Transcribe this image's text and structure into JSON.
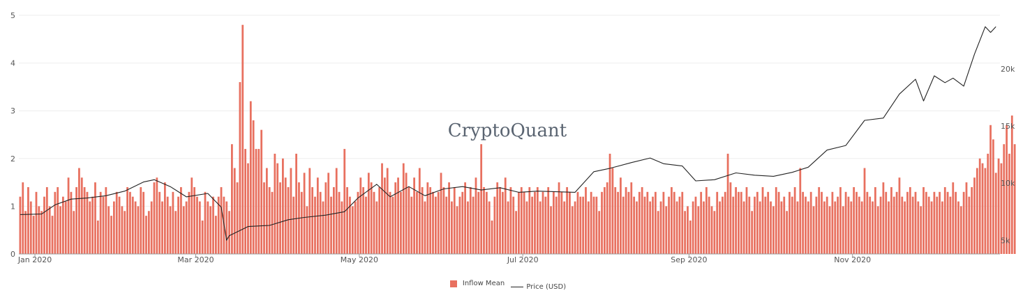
{
  "watermark": "CryptoQuant",
  "colors": {
    "bar": "#e8705f",
    "bar_edge": "#d9534f",
    "line": "#222222",
    "grid": "#eeeeee",
    "axis": "#555555"
  },
  "legend": {
    "bar_label": "Inflow Mean",
    "line_label": "Price (USD)"
  },
  "chart_data": {
    "type": "bar",
    "x_range": [
      "2019-12-26",
      "2020-12-25"
    ],
    "y_left": {
      "ticks": [
        0,
        1,
        2,
        3,
        4,
        5
      ],
      "range": [
        0,
        5
      ]
    },
    "y_right": {
      "ticks": [
        5000,
        10000,
        15000,
        20000
      ],
      "tick_labels": [
        "5k",
        "10k",
        "15k",
        "20k"
      ],
      "range": [
        3800,
        24700
      ]
    },
    "x_ticks": [
      {
        "date": "2020-01-01",
        "label": "Jan 2020"
      },
      {
        "date": "2020-03-01",
        "label": "Mar 2020"
      },
      {
        "date": "2020-05-01",
        "label": "May 2020"
      },
      {
        "date": "2020-07-01",
        "label": "Jul 2020"
      },
      {
        "date": "2020-09-01",
        "label": "Sep 2020"
      },
      {
        "date": "2020-11-01",
        "label": "Nov 2020"
      }
    ],
    "series": [
      {
        "name": "Inflow Mean",
        "type": "bar",
        "start": "2019-12-26",
        "values": [
          1.2,
          1.5,
          0.9,
          1.4,
          1.1,
          0.8,
          1.3,
          1.0,
          0.9,
          1.2,
          1.4,
          1.0,
          0.8,
          1.3,
          1.4,
          1.0,
          1.2,
          1.1,
          1.6,
          1.3,
          0.9,
          1.4,
          1.8,
          1.6,
          1.4,
          1.3,
          1.1,
          1.2,
          1.5,
          0.7,
          1.3,
          1.2,
          1.4,
          1.0,
          0.8,
          1.1,
          1.3,
          1.2,
          1.0,
          0.9,
          1.4,
          1.3,
          1.2,
          1.1,
          1.0,
          1.4,
          1.3,
          0.8,
          0.9,
          1.1,
          1.5,
          1.6,
          1.3,
          1.1,
          1.5,
          1.2,
          1.0,
          1.3,
          0.9,
          1.2,
          1.4,
          1.0,
          1.1,
          1.3,
          1.6,
          1.4,
          1.2,
          1.1,
          0.7,
          1.3,
          1.1,
          1.0,
          1.2,
          0.8,
          1.2,
          1.4,
          1.2,
          1.1,
          0.9,
          2.3,
          1.8,
          1.5,
          3.6,
          4.8,
          2.2,
          1.9,
          3.2,
          2.8,
          2.2,
          2.2,
          2.6,
          1.5,
          1.8,
          1.4,
          1.3,
          2.1,
          1.9,
          1.5,
          2.0,
          1.6,
          1.4,
          1.8,
          1.2,
          2.1,
          1.5,
          1.3,
          1.7,
          1.0,
          1.8,
          1.4,
          1.2,
          1.6,
          1.3,
          1.1,
          1.5,
          1.7,
          1.2,
          1.4,
          1.8,
          1.3,
          1.1,
          2.2,
          1.4,
          1.2,
          1.0,
          1.1,
          1.3,
          1.6,
          1.4,
          1.2,
          1.7,
          1.5,
          1.3,
          1.1,
          1.4,
          1.9,
          1.6,
          1.8,
          1.3,
          1.2,
          1.5,
          1.6,
          1.3,
          1.9,
          1.7,
          1.4,
          1.2,
          1.6,
          1.3,
          1.8,
          1.4,
          1.1,
          1.5,
          1.4,
          1.3,
          1.2,
          1.3,
          1.7,
          1.4,
          1.2,
          1.5,
          1.1,
          1.4,
          1.0,
          1.2,
          1.3,
          1.5,
          1.1,
          1.4,
          1.2,
          1.6,
          1.3,
          2.3,
          1.4,
          1.3,
          1.1,
          0.7,
          1.2,
          1.5,
          1.4,
          1.3,
          1.6,
          1.1,
          1.4,
          1.2,
          0.9,
          1.3,
          1.4,
          1.3,
          1.1,
          1.4,
          1.2,
          1.3,
          1.4,
          1.1,
          1.3,
          1.2,
          1.4,
          1.0,
          1.3,
          1.2,
          1.5,
          1.3,
          1.1,
          1.4,
          1.3,
          1.0,
          1.1,
          1.3,
          1.2,
          1.2,
          1.4,
          1.1,
          1.3,
          1.2,
          1.2,
          0.9,
          1.3,
          1.4,
          1.5,
          2.1,
          1.8,
          1.4,
          1.3,
          1.6,
          1.2,
          1.4,
          1.3,
          1.5,
          1.2,
          1.1,
          1.3,
          1.4,
          1.2,
          1.3,
          1.1,
          1.2,
          1.3,
          0.9,
          1.1,
          1.3,
          1.0,
          1.2,
          1.4,
          1.3,
          1.1,
          1.2,
          1.3,
          0.9,
          1.0,
          0.7,
          1.1,
          1.2,
          1.0,
          1.3,
          1.1,
          1.4,
          1.2,
          1.0,
          0.9,
          1.3,
          1.1,
          1.2,
          1.3,
          2.1,
          1.5,
          1.2,
          1.4,
          1.3,
          1.3,
          1.1,
          1.4,
          1.2,
          0.9,
          1.2,
          1.3,
          1.1,
          1.4,
          1.2,
          1.3,
          1.1,
          1.0,
          1.4,
          1.3,
          1.1,
          1.2,
          0.9,
          1.3,
          1.2,
          1.4,
          1.1,
          1.8,
          1.3,
          1.2,
          1.1,
          1.3,
          1.0,
          1.2,
          1.4,
          1.3,
          1.1,
          1.2,
          1.0,
          1.3,
          1.1,
          1.2,
          1.4,
          1.0,
          1.3,
          1.2,
          1.1,
          1.4,
          1.3,
          1.2,
          1.1,
          1.8,
          1.3,
          1.2,
          1.1,
          1.4,
          1.0,
          1.2,
          1.5,
          1.3,
          1.1,
          1.4,
          1.2,
          1.3,
          1.6,
          1.2,
          1.1,
          1.3,
          1.4,
          1.2,
          1.3,
          1.1,
          1.0,
          1.4,
          1.3,
          1.2,
          1.1,
          1.3,
          1.2,
          1.3,
          1.1,
          1.4,
          1.3,
          1.2,
          1.5,
          1.3,
          1.1,
          1.0,
          1.3,
          1.5,
          1.2,
          1.4,
          1.6,
          1.8,
          2.0,
          1.9,
          1.8,
          2.1,
          2.7,
          2.4,
          1.7,
          2.0,
          1.9,
          2.3,
          2.7,
          2.1,
          2.9,
          2.3,
          1.8,
          2.2,
          2.4,
          2.0,
          2.3,
          2.4
        ]
      },
      {
        "name": "Price (USD)",
        "type": "line",
        "axis": "right",
        "points": [
          [
            "2019-12-26",
            7250
          ],
          [
            "2020-01-03",
            7300
          ],
          [
            "2020-01-08",
            8100
          ],
          [
            "2020-01-14",
            8600
          ],
          [
            "2020-01-20",
            8700
          ],
          [
            "2020-01-27",
            8900
          ],
          [
            "2020-02-03",
            9300
          ],
          [
            "2020-02-10",
            10100
          ],
          [
            "2020-02-14",
            10300
          ],
          [
            "2020-02-20",
            9700
          ],
          [
            "2020-02-26",
            8800
          ],
          [
            "2020-03-05",
            9100
          ],
          [
            "2020-03-10",
            7900
          ],
          [
            "2020-03-12",
            5000
          ],
          [
            "2020-03-13",
            5400
          ],
          [
            "2020-03-20",
            6200
          ],
          [
            "2020-03-28",
            6300
          ],
          [
            "2020-04-04",
            6800
          ],
          [
            "2020-04-10",
            7000
          ],
          [
            "2020-04-18",
            7200
          ],
          [
            "2020-04-25",
            7500
          ],
          [
            "2020-04-30",
            8700
          ],
          [
            "2020-05-07",
            9900
          ],
          [
            "2020-05-12",
            8800
          ],
          [
            "2020-05-19",
            9700
          ],
          [
            "2020-05-25",
            8900
          ],
          [
            "2020-06-01",
            9500
          ],
          [
            "2020-06-08",
            9700
          ],
          [
            "2020-06-15",
            9400
          ],
          [
            "2020-06-22",
            9600
          ],
          [
            "2020-06-29",
            9200
          ],
          [
            "2020-07-06",
            9300
          ],
          [
            "2020-07-13",
            9250
          ],
          [
            "2020-07-20",
            9200
          ],
          [
            "2020-07-27",
            11000
          ],
          [
            "2020-08-02",
            11300
          ],
          [
            "2020-08-10",
            11800
          ],
          [
            "2020-08-17",
            12200
          ],
          [
            "2020-08-22",
            11700
          ],
          [
            "2020-08-29",
            11500
          ],
          [
            "2020-09-03",
            10200
          ],
          [
            "2020-09-10",
            10300
          ],
          [
            "2020-09-18",
            10900
          ],
          [
            "2020-09-25",
            10700
          ],
          [
            "2020-10-02",
            10600
          ],
          [
            "2020-10-09",
            10950
          ],
          [
            "2020-10-15",
            11400
          ],
          [
            "2020-10-22",
            12900
          ],
          [
            "2020-10-29",
            13300
          ],
          [
            "2020-11-05",
            15500
          ],
          [
            "2020-11-12",
            15700
          ],
          [
            "2020-11-18",
            17800
          ],
          [
            "2020-11-24",
            19100
          ],
          [
            "2020-11-27",
            17200
          ],
          [
            "2020-12-01",
            19400
          ],
          [
            "2020-12-05",
            18800
          ],
          [
            "2020-12-08",
            19200
          ],
          [
            "2020-12-12",
            18500
          ],
          [
            "2020-12-16",
            21300
          ],
          [
            "2020-12-20",
            23700
          ],
          [
            "2020-12-22",
            23200
          ],
          [
            "2020-12-24",
            23700
          ]
        ]
      }
    ]
  }
}
